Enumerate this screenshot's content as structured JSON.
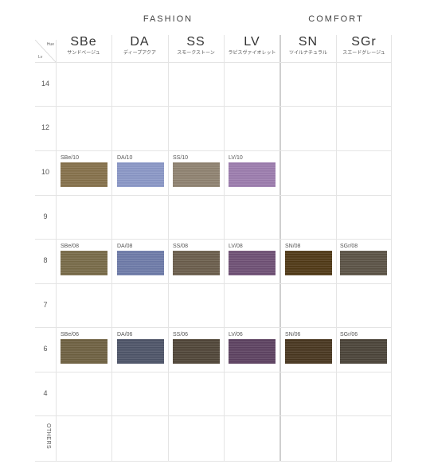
{
  "groups": {
    "fashion": "FASHION",
    "comfort": "COMFORT"
  },
  "corner": {
    "hue": "Hue",
    "lv": "Lv"
  },
  "columns": [
    {
      "code": "SBe",
      "jp": "サンドベージュ"
    },
    {
      "code": "DA",
      "jp": "ディープアクア"
    },
    {
      "code": "SS",
      "jp": "スモークストーン"
    },
    {
      "code": "LV",
      "jp": "ラピスヴァイオレット"
    },
    {
      "code": "SN",
      "jp": "ツイルナチュラル"
    },
    {
      "code": "SGr",
      "jp": "スエードグレージュ"
    }
  ],
  "levels": [
    "14",
    "12",
    "10",
    "9",
    "8",
    "7",
    "6",
    "4",
    "OTHERS"
  ],
  "swatches": {
    "row10": [
      {
        "label": "SBe/10",
        "color": "#85704a"
      },
      {
        "label": "DA/10",
        "color": "#8a97c7"
      },
      {
        "label": "SS/10",
        "color": "#8f8270"
      },
      {
        "label": "LV/10",
        "color": "#9c7cae"
      }
    ],
    "row8": [
      {
        "label": "SBe/08",
        "color": "#776a47"
      },
      {
        "label": "DA/08",
        "color": "#6d7aa8"
      },
      {
        "label": "SS/08",
        "color": "#6a5d4b"
      },
      {
        "label": "LV/08",
        "color": "#6e4f74"
      },
      {
        "label": "SN/08",
        "color": "#4f3815"
      },
      {
        "label": "SGr/08",
        "color": "#5a5245"
      }
    ],
    "row6": [
      {
        "label": "SBe/06",
        "color": "#6e6041"
      },
      {
        "label": "DA/06",
        "color": "#4d5468"
      },
      {
        "label": "SS/06",
        "color": "#4f4537"
      },
      {
        "label": "LV/06",
        "color": "#5c4160"
      },
      {
        "label": "SN/06",
        "color": "#48361e"
      },
      {
        "label": "SGr/06",
        "color": "#4a4338"
      }
    ]
  }
}
